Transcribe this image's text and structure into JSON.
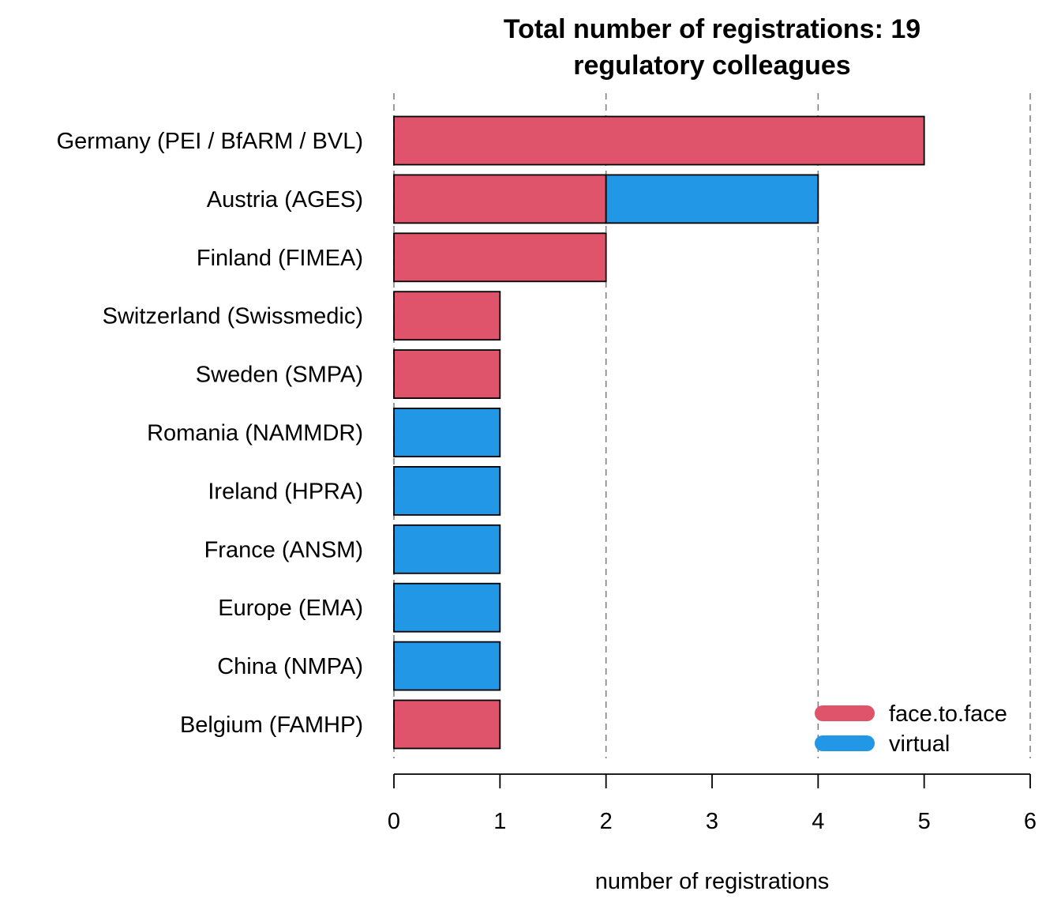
{
  "chart_data": {
    "type": "bar",
    "orientation": "horizontal",
    "stacked": true,
    "title": [
      "Total number of registrations: 19",
      "regulatory colleagues"
    ],
    "xlabel": "number of registrations",
    "ylabel": "",
    "xlim": [
      0,
      6
    ],
    "xticks": [
      0,
      1,
      2,
      3,
      4,
      5,
      6
    ],
    "grid": {
      "vertical_dashed_at": [
        0,
        2,
        4,
        6
      ]
    },
    "legend_position": "bottom-right",
    "categories": [
      "Germany (PEI / BfARM / BVL)",
      "Austria (AGES)",
      "Finland (FIMEA)",
      "Switzerland (Swissmedic)",
      "Sweden (SMPA)",
      "Romania (NAMMDR)",
      "Ireland (HPRA)",
      "France (ANSM)",
      "Europe (EMA)",
      "China (NMPA)",
      "Belgium (FAMHP)"
    ],
    "series": [
      {
        "name": "face.to.face",
        "color": "#DF536B",
        "values": [
          5,
          2,
          2,
          1,
          1,
          0,
          0,
          0,
          0,
          0,
          1
        ]
      },
      {
        "name": "virtual",
        "color": "#2297E6",
        "values": [
          0,
          2,
          0,
          0,
          0,
          1,
          1,
          1,
          1,
          1,
          0
        ]
      }
    ]
  }
}
